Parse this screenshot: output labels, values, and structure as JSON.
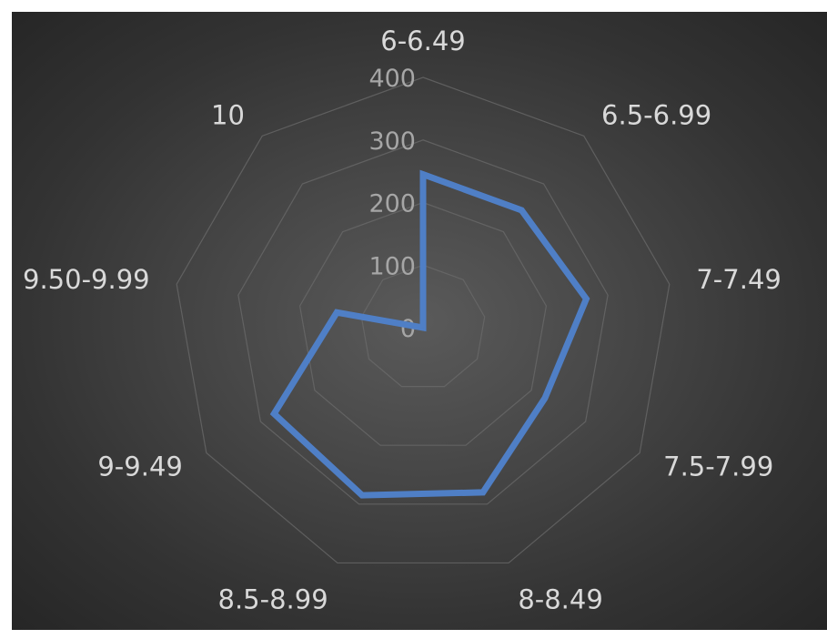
{
  "chart_data": {
    "type": "radar",
    "categories": [
      "6-6.49",
      "6.5-6.99",
      "7-7.49",
      "7.5-7.99",
      "8-8.49",
      "8.5-8.99",
      "9-9.49",
      "9.50-9.99",
      "10"
    ],
    "series": [
      {
        "values": [
          245,
          245,
          265,
          225,
          280,
          285,
          275,
          140,
          0
        ]
      }
    ],
    "rlim": [
      0,
      400
    ],
    "ticks": [
      0,
      100,
      200,
      300,
      400
    ],
    "grid": true,
    "legend": "none",
    "colors": {
      "series": "#4f7fc6",
      "background": "#3a3a3a",
      "grid": "#6b6b6b",
      "text": "#d9d9d9",
      "tick_text": "#a6a6a6"
    }
  }
}
